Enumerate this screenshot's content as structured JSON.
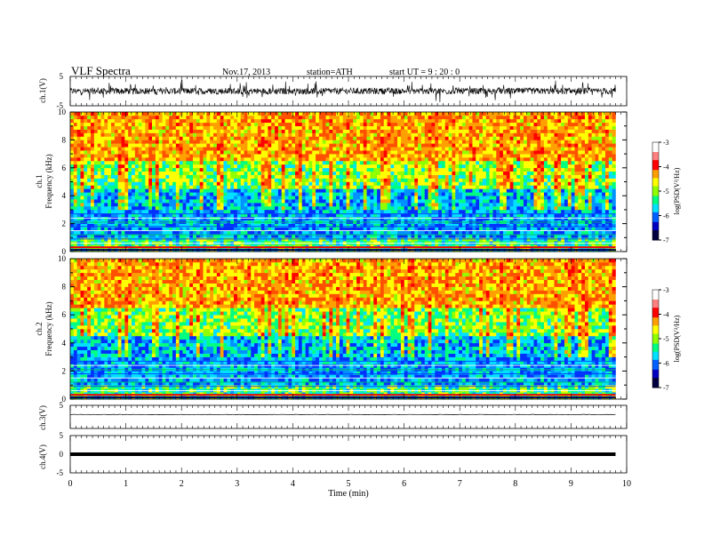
{
  "header": {
    "title": "VLF  Spectra",
    "date": "Nov.17, 2013",
    "station": "station=ATH",
    "start": "start  UT  =   9  : 20 : 0"
  },
  "colorbar": {
    "label": "log(PSD(V²/Hz)",
    "ticks": [
      "-3",
      "-4",
      "-5",
      "-6",
      "-7"
    ],
    "colors": [
      "#ffffff",
      "#ff8080",
      "#ff0000",
      "#ffa000",
      "#ffff00",
      "#90ff00",
      "#00ff80",
      "#00e0ff",
      "#0060ff",
      "#0000c0",
      "#000040"
    ]
  },
  "chart_data": [
    {
      "type": "line",
      "panel": "ch1-waveform",
      "ylabel": "ch.1(V)",
      "ylim": [
        -5,
        5
      ],
      "ytick_labels": [
        "5",
        "-5"
      ],
      "xlim": [
        0,
        10
      ],
      "description_values": {
        "x_end_min": 9.8,
        "baseline_v": 0.0
      }
    },
    {
      "type": "heatmap",
      "panel": "ch1-spectrogram",
      "ylabel_channel": "ch.1",
      "ylabel": "Frequency  (kHz)",
      "ylim": [
        0,
        10
      ],
      "ytick_labels": [
        "0",
        "2",
        "4",
        "6",
        "8",
        "10"
      ],
      "xlim": [
        0,
        10
      ],
      "x_data_end": 9.8,
      "zlim": [
        -7,
        -3
      ]
    },
    {
      "type": "heatmap",
      "panel": "ch2-spectrogram",
      "ylabel_channel": "ch.2",
      "ylabel": "Frequency  (kHz)",
      "ylim": [
        0,
        10
      ],
      "ytick_labels": [
        "0",
        "2",
        "4",
        "6",
        "8",
        "10"
      ],
      "xlim": [
        0,
        10
      ],
      "x_data_end": 9.8,
      "zlim": [
        -7,
        -3
      ]
    },
    {
      "type": "line",
      "panel": "ch3-waveform",
      "ylabel": "ch.3(V)",
      "ylim": [
        -5,
        5
      ],
      "ytick_labels": [
        "5"
      ],
      "xlim": [
        0,
        10
      ],
      "description_values": {
        "x_end_min": 9.8,
        "baseline_v": 1.0
      }
    },
    {
      "type": "line",
      "panel": "ch4-waveform",
      "ylabel": "ch.4(V)",
      "ylim": [
        -5,
        5
      ],
      "ytick_labels": [
        "5",
        "0",
        "-5"
      ],
      "xlim": [
        0,
        10
      ],
      "description_values": {
        "x_end_min": 9.8,
        "baseline_v": 0.0
      }
    }
  ],
  "xaxis": {
    "label": "Time  (min)",
    "ticks": [
      "0",
      "1",
      "2",
      "3",
      "4",
      "5",
      "6",
      "7",
      "8",
      "9",
      "10"
    ]
  }
}
